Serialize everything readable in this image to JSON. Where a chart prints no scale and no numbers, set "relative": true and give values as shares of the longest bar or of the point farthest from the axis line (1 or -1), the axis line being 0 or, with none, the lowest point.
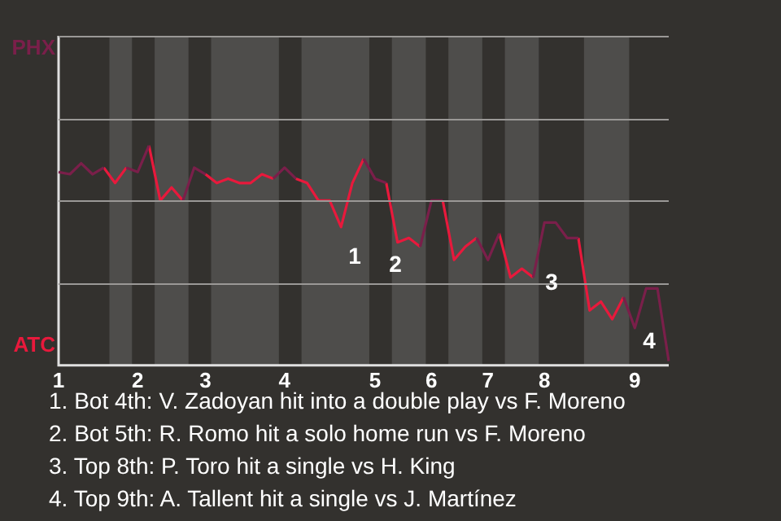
{
  "chart_data": {
    "type": "line",
    "relative": true,
    "categories": [
      "1",
      null,
      null,
      null,
      null,
      null,
      null,
      "2",
      null,
      null,
      null,
      null,
      null,
      "3",
      null,
      null,
      null,
      null,
      null,
      null,
      "4",
      null,
      null,
      null,
      null,
      null,
      null,
      null,
      "5",
      null,
      null,
      null,
      null,
      "6",
      null,
      null,
      null,
      null,
      "7",
      null,
      null,
      null,
      null,
      "8",
      null,
      null,
      null,
      null,
      null,
      null,
      null,
      "9",
      null,
      null,
      null
    ],
    "series": [
      {
        "color": "#7a1f4a",
        "values": [
          0.88,
          0.87,
          0.92,
          0.87,
          0.9,
          null,
          0.9,
          0.88,
          1,
          null,
          null,
          0.75,
          0.9,
          0.87,
          null,
          null,
          null,
          null,
          null,
          0.85,
          0.9,
          0.85,
          null,
          null,
          null,
          null,
          null,
          0.94,
          0.85,
          0.83,
          null,
          null,
          0.54,
          0.75,
          0.75,
          null,
          null,
          0.58,
          0.48,
          0.6,
          null,
          null,
          0.4,
          0.65,
          0.65,
          0.58,
          0.58,
          null,
          null,
          null,
          0.31,
          0.17,
          0.35,
          0.35,
          0.02
        ]
      },
      {
        "color": "#e8193c",
        "values": [
          null,
          null,
          null,
          null,
          0.9,
          0.83,
          0.9,
          null,
          1,
          0.75,
          0.81,
          0.75,
          null,
          0.87,
          0.83,
          0.85,
          0.83,
          0.83,
          0.87,
          0.85,
          null,
          0.85,
          0.83,
          0.75,
          0.75,
          0.63,
          0.83,
          0.94,
          null,
          0.83,
          0.56,
          0.58,
          0.54,
          null,
          0.75,
          0.48,
          0.54,
          0.58,
          null,
          0.6,
          0.4,
          0.44,
          0.4,
          null,
          null,
          null,
          0.58,
          0.25,
          0.29,
          0.21,
          0.31,
          null,
          null,
          null,
          null
        ]
      }
    ],
    "marker": "none",
    "line_style": "solid",
    "legend": false,
    "annotations": [
      "PHX",
      "ATC",
      "1",
      "2",
      "3",
      "4",
      "1. Bot 4th: V. Zadoyan hit into a double play vs F. Moreno",
      "2. Bot 5th: R. Romo hit a solo home run vs F. Moreno",
      "3. Top 8th: P. Toro hit a single vs H. King",
      "4. Top 9th: A. Tallent hit a single vs J. Martínez"
    ]
  }
}
